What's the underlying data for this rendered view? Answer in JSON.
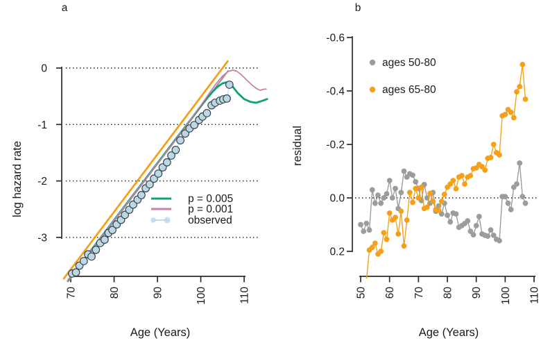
{
  "figure": {
    "background": "#ffffff",
    "text_color": "#1a1a1a",
    "axis_color": "#2b2b2b"
  },
  "chart_data": [
    {
      "type": "line",
      "panel_label": "a",
      "xlabel": "Age (Years)",
      "ylabel": "log hazard rate",
      "xticks": [
        70,
        80,
        90,
        100,
        110
      ],
      "xtick_labels": [
        "70",
        "80",
        "90",
        "100",
        "110"
      ],
      "yticks": [
        0,
        -1,
        -2,
        -3
      ],
      "ytick_labels": [
        "0",
        "-1",
        "-2",
        "-3"
      ],
      "xlim": [
        68,
        115.5
      ],
      "ylim": [
        -3.85,
        0.15
      ],
      "grid": "horizontal dotted lines at every y tick",
      "legend": {
        "position": "inside middle-right",
        "items": [
          {
            "label": "p = 0.005",
            "color": "#0FA175",
            "marker": "line"
          },
          {
            "label": "p = 0.001",
            "color": "#C87FA7",
            "marker": "line"
          },
          {
            "label": "observed",
            "color": "#BCD8E6",
            "marker": "dot-line"
          }
        ]
      },
      "series": [
        {
          "name": "straight-fit-orange",
          "type": "line",
          "color": "#F5A01B",
          "width": 2.8,
          "points": [
            [
              68.4,
              -3.73
            ],
            [
              106.2,
              0.12
            ]
          ]
        },
        {
          "name": "straight-fit-gray",
          "type": "line",
          "color": "#9B9B9B",
          "width": 2.2,
          "points": [
            [
              69.4,
              -3.78
            ],
            [
              106.3,
              -0.05
            ]
          ]
        },
        {
          "name": "p = 0.005",
          "type": "line",
          "color": "#0FA175",
          "width": 2.8,
          "points": [
            [
              69.4,
              -3.76
            ],
            [
              96.5,
              -1.03
            ],
            [
              98,
              -0.88
            ],
            [
              99.5,
              -0.725
            ],
            [
              101,
              -0.575
            ],
            [
              102.5,
              -0.44
            ],
            [
              103.8,
              -0.335
            ],
            [
              105,
              -0.272
            ],
            [
              105.9,
              -0.252
            ],
            [
              107,
              -0.295
            ],
            [
              108.5,
              -0.44
            ],
            [
              110,
              -0.55
            ],
            [
              111.5,
              -0.6
            ],
            [
              112.8,
              -0.615
            ],
            [
              114,
              -0.585
            ],
            [
              115.3,
              -0.55
            ]
          ]
        },
        {
          "name": "p = 0.001",
          "type": "line",
          "color": "#C87FA7",
          "width": 1.7,
          "points": [
            [
              69.2,
              -3.78
            ],
            [
              95,
              -1.19
            ],
            [
              100,
              -0.66
            ],
            [
              102,
              -0.44
            ],
            [
              103.5,
              -0.28
            ],
            [
              105,
              -0.14
            ],
            [
              106.3,
              -0.06
            ],
            [
              107.4,
              -0.037
            ],
            [
              108.3,
              -0.055
            ],
            [
              109.4,
              -0.12
            ],
            [
              110.6,
              -0.215
            ],
            [
              111.8,
              -0.3
            ],
            [
              112.9,
              -0.365
            ],
            [
              113.7,
              -0.394
            ],
            [
              114.5,
              -0.375
            ],
            [
              115.1,
              -0.372
            ]
          ]
        },
        {
          "name": "observed",
          "type": "scatter-line",
          "marker_fill": "#BCD8E6",
          "marker_stroke": "#39444B",
          "marker_stroke_width": 1.2,
          "line_color": "#C7DAE3",
          "line_width": 1.2,
          "radius": 5.3,
          "points": [
            [
              70.3,
              -3.64
            ],
            [
              71.2,
              -3.62
            ],
            [
              72,
              -3.5
            ],
            [
              73,
              -3.42
            ],
            [
              74,
              -3.3
            ],
            [
              74.8,
              -3.34
            ],
            [
              75.8,
              -3.22
            ],
            [
              76.8,
              -3.1
            ],
            [
              77.8,
              -3.04
            ],
            [
              78.7,
              -2.92
            ],
            [
              79.6,
              -2.87
            ],
            [
              80.6,
              -2.77
            ],
            [
              81.6,
              -2.69
            ],
            [
              82.5,
              -2.6
            ],
            [
              83.5,
              -2.51
            ],
            [
              84.4,
              -2.42
            ],
            [
              85.4,
              -2.33
            ],
            [
              86.3,
              -2.25
            ],
            [
              87.3,
              -2.13
            ],
            [
              88.2,
              -2.06
            ],
            [
              89.2,
              -1.96
            ],
            [
              90.2,
              -1.87
            ],
            [
              91.2,
              -1.76
            ],
            [
              92.2,
              -1.67
            ],
            [
              93.2,
              -1.55
            ],
            [
              94.2,
              -1.45
            ],
            [
              95.3,
              -1.28
            ],
            [
              96.4,
              -1.16
            ],
            [
              97.4,
              -1.07
            ],
            [
              98.5,
              -1.01
            ],
            [
              99.6,
              -0.92
            ],
            [
              100.4,
              -0.86
            ],
            [
              101.4,
              -0.8
            ],
            [
              102.5,
              -0.66
            ],
            [
              103.3,
              -0.615
            ],
            [
              104.4,
              -0.578
            ],
            [
              105.2,
              -0.553
            ],
            [
              106,
              -0.54
            ],
            [
              106.6,
              -0.295
            ]
          ]
        }
      ]
    },
    {
      "type": "scatter-line",
      "panel_label": "b",
      "xlabel": "Age (Years)",
      "ylabel": "residual",
      "xticks": [
        50,
        60,
        70,
        80,
        90,
        100,
        110
      ],
      "xtick_labels": [
        "50",
        "60",
        "70",
        "80",
        "90",
        "100",
        "110"
      ],
      "yticks": [
        -0.6,
        -0.4,
        -0.2,
        0.0,
        0.2
      ],
      "ytick_labels": [
        "-0.6",
        "-0.4",
        "-0.2",
        "0.0",
        "0.2"
      ],
      "xlim": [
        48,
        112
      ],
      "ylim": [
        0.3,
        -0.62
      ],
      "y_axis_reversed": true,
      "grid": "single horizontal dotted line at 0.0",
      "legend": {
        "position": "inside upper-left",
        "items": [
          {
            "label": "ages 50-80",
            "color": "#9C9C9C",
            "marker": "dot"
          },
          {
            "label": "ages 65-80",
            "color": "#F5A01B",
            "marker": "dot"
          }
        ]
      },
      "series": [
        {
          "name": "ages 50-80",
          "type": "scatter-line",
          "marker_fill": "#9C9C9C",
          "line_color": "#9C9C9C",
          "line_width": 1.4,
          "radius": 3.9,
          "points": [
            [
              50,
              0.1
            ],
            [
              51,
              0.125
            ],
            [
              52,
              0.095
            ],
            [
              53,
              0.12
            ],
            [
              54,
              -0.03
            ],
            [
              55,
              0.02
            ],
            [
              56,
              -0.01
            ],
            [
              57,
              0.02
            ],
            [
              58,
              0.0
            ],
            [
              59,
              -0.015
            ],
            [
              60,
              -0.065
            ],
            [
              61,
              0.0
            ],
            [
              62,
              -0.035
            ],
            [
              63,
              0.04
            ],
            [
              64,
              -0.02
            ],
            [
              65,
              -0.1
            ],
            [
              66,
              -0.078
            ],
            [
              67,
              -0.09
            ],
            [
              68,
              -0.085
            ],
            [
              69,
              -0.06
            ],
            [
              70,
              -0.035
            ],
            [
              71,
              0.01
            ],
            [
              72,
              -0.05
            ],
            [
              73,
              0.0
            ],
            [
              74,
              0.02
            ],
            [
              75,
              -0.02
            ],
            [
              76,
              0.05
            ],
            [
              77,
              0.03
            ],
            [
              78,
              0.06
            ],
            [
              79,
              0.02
            ],
            [
              80,
              0.065
            ],
            [
              81,
              0.09
            ],
            [
              82,
              0.057
            ],
            [
              83,
              0.06
            ],
            [
              84,
              0.11
            ],
            [
              85,
              0.104
            ],
            [
              86,
              0.096
            ],
            [
              87,
              0.086
            ],
            [
              88,
              0.125
            ],
            [
              89,
              0.138
            ],
            [
              90,
              0.104
            ],
            [
              91,
              0.07
            ],
            [
              92,
              0.135
            ],
            [
              93,
              0.14
            ],
            [
              94,
              0.143
            ],
            [
              95,
              0.12
            ],
            [
              96,
              0.14
            ],
            [
              97,
              0.155
            ],
            [
              98,
              0.16
            ],
            [
              99,
              -0.005
            ],
            [
              100,
              -0.005
            ],
            [
              101,
              0.02
            ],
            [
              102,
              0.044
            ],
            [
              103,
              -0.04
            ],
            [
              104,
              -0.052
            ],
            [
              105,
              -0.13
            ],
            [
              106,
              -0.005
            ],
            [
              107,
              0.02
            ]
          ]
        },
        {
          "name": "ages 65-80",
          "type": "scatter-line",
          "marker_fill": "#F5A01B",
          "line_color": "#F5A01B",
          "line_width": 1.4,
          "radius": 3.9,
          "points": [
            [
              52,
              0.31
            ],
            [
              53,
              0.195
            ],
            [
              54,
              0.185
            ],
            [
              55,
              0.17
            ],
            [
              56,
              0.21
            ],
            [
              57,
              0.2
            ],
            [
              58,
              0.13
            ],
            [
              59,
              0.155
            ],
            [
              60,
              0.057
            ],
            [
              61,
              0.083
            ],
            [
              62,
              0.073
            ],
            [
              63,
              0.135
            ],
            [
              64,
              0.05
            ],
            [
              65,
              0.18
            ],
            [
              66,
              0.083
            ],
            [
              67,
              -0.02
            ],
            [
              68,
              0.017
            ],
            [
              69,
              -0.035
            ],
            [
              70,
              0.0
            ],
            [
              71,
              -0.04
            ],
            [
              72,
              0.04
            ],
            [
              73,
              0.035
            ],
            [
              74,
              -0.017
            ],
            [
              75,
              0.013
            ],
            [
              76,
              0.044
            ],
            [
              77,
              0.047
            ],
            [
              78,
              0.013
            ],
            [
              79,
              -0.013
            ],
            [
              80,
              -0.04
            ],
            [
              81,
              -0.052
            ],
            [
              82,
              -0.065
            ],
            [
              83,
              -0.034
            ],
            [
              84,
              -0.078
            ],
            [
              85,
              -0.083
            ],
            [
              86,
              -0.052
            ],
            [
              87,
              -0.078
            ],
            [
              88,
              -0.083
            ],
            [
              89,
              -0.109
            ],
            [
              90,
              -0.112
            ],
            [
              91,
              -0.125
            ],
            [
              92,
              -0.117
            ],
            [
              93,
              -0.104
            ],
            [
              94,
              -0.148
            ],
            [
              95,
              -0.151
            ],
            [
              96,
              -0.2
            ],
            [
              97,
              -0.169
            ],
            [
              98,
              -0.161
            ],
            [
              99,
              -0.307
            ],
            [
              100,
              -0.312
            ],
            [
              101,
              -0.33
            ],
            [
              102,
              -0.32
            ],
            [
              103,
              -0.3
            ],
            [
              104,
              -0.397
            ],
            [
              105,
              -0.416
            ],
            [
              106,
              -0.499
            ],
            [
              107,
              -0.369
            ]
          ]
        }
      ]
    }
  ]
}
